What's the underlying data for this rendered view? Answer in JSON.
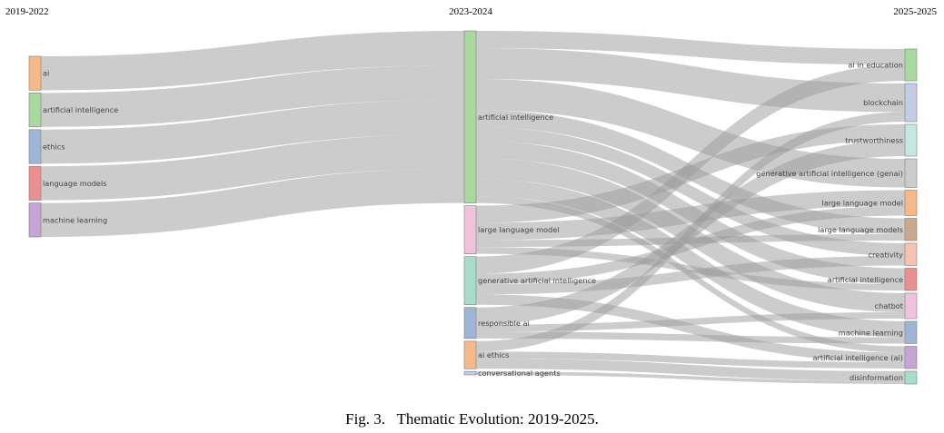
{
  "columns": [
    "2019-2022",
    "2023-2024",
    "2025-2025"
  ],
  "caption": {
    "fig_label": "Fig. 3.",
    "text": "Thematic Evolution: 2019-2025."
  },
  "chart_data": {
    "type": "sankey",
    "nodes": [
      {
        "id": "a0",
        "label": "ai",
        "column": 0,
        "color": "#f5b98a"
      },
      {
        "id": "a1",
        "label": "artificial intelligence",
        "column": 0,
        "color": "#a9d8a0"
      },
      {
        "id": "a2",
        "label": "ethics",
        "column": 0,
        "color": "#9eb6d6"
      },
      {
        "id": "a3",
        "label": "language models",
        "column": 0,
        "color": "#ea9090"
      },
      {
        "id": "a4",
        "label": "machine learning",
        "column": 0,
        "color": "#c6a4d4"
      },
      {
        "id": "b0",
        "label": "artificial intelligence",
        "column": 1,
        "color": "#a9d8a0"
      },
      {
        "id": "b1",
        "label": "large language model",
        "column": 1,
        "color": "#f0c2dc"
      },
      {
        "id": "b2",
        "label": "generative artificial intelligence",
        "column": 1,
        "color": "#a6dcc8"
      },
      {
        "id": "b3",
        "label": "responsible ai",
        "column": 1,
        "color": "#9eb6d6"
      },
      {
        "id": "b4",
        "label": "ai ethics",
        "column": 1,
        "color": "#f5b98a"
      },
      {
        "id": "b5",
        "label": "conversational agents",
        "column": 1,
        "color": "#c4cce8"
      },
      {
        "id": "c0",
        "label": "ai in education",
        "column": 2,
        "color": "#a9d8a0"
      },
      {
        "id": "c1",
        "label": "blockchain",
        "column": 2,
        "color": "#c4cce8"
      },
      {
        "id": "c2",
        "label": "trustworthiness",
        "column": 2,
        "color": "#c4e8e0"
      },
      {
        "id": "c3",
        "label": "generative artificial intelligence (genai)",
        "column": 2,
        "color": "#cccccc"
      },
      {
        "id": "c4",
        "label": "large language model",
        "column": 2,
        "color": "#f5b98a"
      },
      {
        "id": "c5",
        "label": "large language models",
        "column": 2,
        "color": "#c9a88e"
      },
      {
        "id": "c6",
        "label": "creativity",
        "column": 2,
        "color": "#f5c4b0"
      },
      {
        "id": "c7",
        "label": "artificial intelligence",
        "column": 2,
        "color": "#ea9090"
      },
      {
        "id": "c8",
        "label": "chatbot",
        "column": 2,
        "color": "#f0c2dc"
      },
      {
        "id": "c9",
        "label": "machine learning",
        "column": 2,
        "color": "#9eb6d6"
      },
      {
        "id": "c10",
        "label": "artificial intelligence (ai)",
        "column": 2,
        "color": "#c6a4d4"
      },
      {
        "id": "c11",
        "label": "disinformation",
        "column": 2,
        "color": "#a6dcc8"
      }
    ],
    "links": [
      {
        "source": "a0",
        "target": "b0",
        "value": 1
      },
      {
        "source": "a1",
        "target": "b0",
        "value": 1
      },
      {
        "source": "a2",
        "target": "b0",
        "value": 1
      },
      {
        "source": "a3",
        "target": "b0",
        "value": 1
      },
      {
        "source": "a4",
        "target": "b0",
        "value": 1
      },
      {
        "source": "b0",
        "target": "c0",
        "value": 0.5
      },
      {
        "source": "b0",
        "target": "c1",
        "value": 0.9
      },
      {
        "source": "b0",
        "target": "c3",
        "value": 0.9
      },
      {
        "source": "b0",
        "target": "c5",
        "value": 0.5
      },
      {
        "source": "b0",
        "target": "c6",
        "value": 0.4
      },
      {
        "source": "b0",
        "target": "c7",
        "value": 0.5
      },
      {
        "source": "b0",
        "target": "c8",
        "value": 0.6
      },
      {
        "source": "b0",
        "target": "c9",
        "value": 0.5
      },
      {
        "source": "b0",
        "target": "c10",
        "value": 0.2
      },
      {
        "source": "b1",
        "target": "c2",
        "value": 0.5
      },
      {
        "source": "b1",
        "target": "c4",
        "value": 0.5
      },
      {
        "source": "b1",
        "target": "c5",
        "value": 0.2
      },
      {
        "source": "b1",
        "target": "c7",
        "value": 0.2
      },
      {
        "source": "b2",
        "target": "c0",
        "value": 0.5
      },
      {
        "source": "b2",
        "target": "c4",
        "value": 0.3
      },
      {
        "source": "b2",
        "target": "c6",
        "value": 0.3
      },
      {
        "source": "b2",
        "target": "c10",
        "value": 0.3
      },
      {
        "source": "b3",
        "target": "c2",
        "value": 0.5
      },
      {
        "source": "b3",
        "target": "c8",
        "value": 0.2
      },
      {
        "source": "b3",
        "target": "c9",
        "value": 0.2
      },
      {
        "source": "b4",
        "target": "c1",
        "value": 0.3
      },
      {
        "source": "b4",
        "target": "c10",
        "value": 0.2
      },
      {
        "source": "b4",
        "target": "c11",
        "value": 0.3
      },
      {
        "source": "b5",
        "target": "c11",
        "value": 0.1
      }
    ]
  }
}
